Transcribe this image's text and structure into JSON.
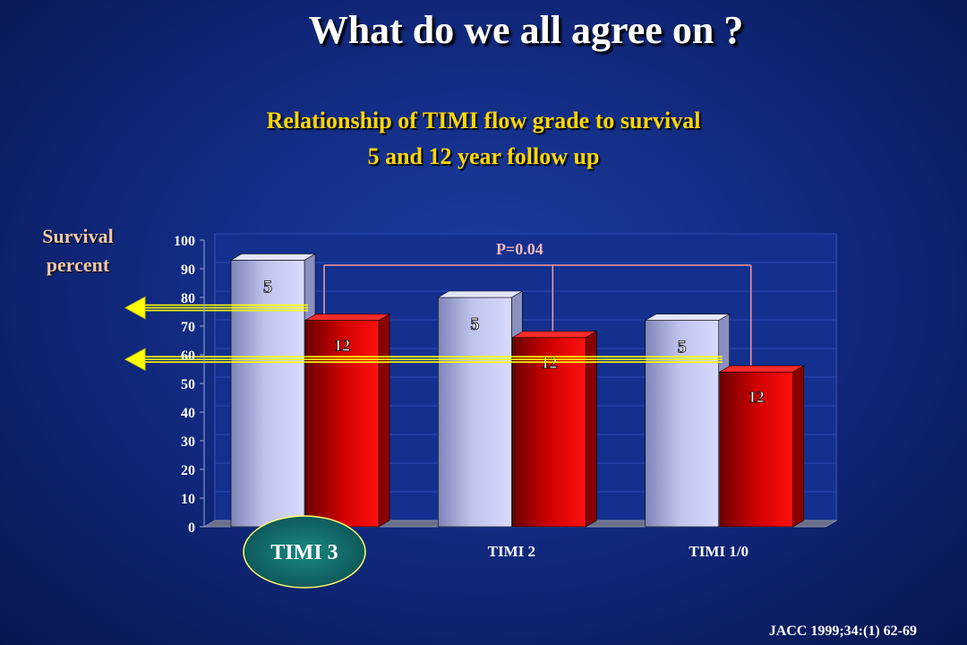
{
  "slide": {
    "title": "What do we all agree on ?",
    "citation": "JACC 1999;34:(1) 62-69"
  },
  "chart_data": {
    "type": "bar",
    "title_lines": [
      "Relationship of TIMI flow grade to survival",
      "5 and 12 year follow up"
    ],
    "ylabel": "Survival percent",
    "ylim": [
      0,
      100
    ],
    "ytick_step": 10,
    "categories": [
      "TIMI 3",
      "TIMI 2",
      "TIMI 1/0"
    ],
    "highlighted_category": "TIMI 3",
    "series": [
      {
        "name": "5",
        "color": "#c4c6ee",
        "values": [
          93,
          80,
          72
        ],
        "labels": [
          "5",
          "5",
          "5"
        ]
      },
      {
        "name": "12",
        "color": "#e00000",
        "values": [
          72,
          66,
          54
        ],
        "labels": [
          "12",
          "12",
          "12"
        ]
      }
    ],
    "annotation": "P=0.04",
    "reference_arrow_values": [
      72,
      54
    ],
    "grid": true,
    "colors": {
      "grid": "#2e4db5",
      "pvalue_bracket": "#ff9999",
      "arrow": "#ffff00",
      "highlight_fill": "#0e6a66",
      "highlight_edge": "#ffff66"
    }
  }
}
